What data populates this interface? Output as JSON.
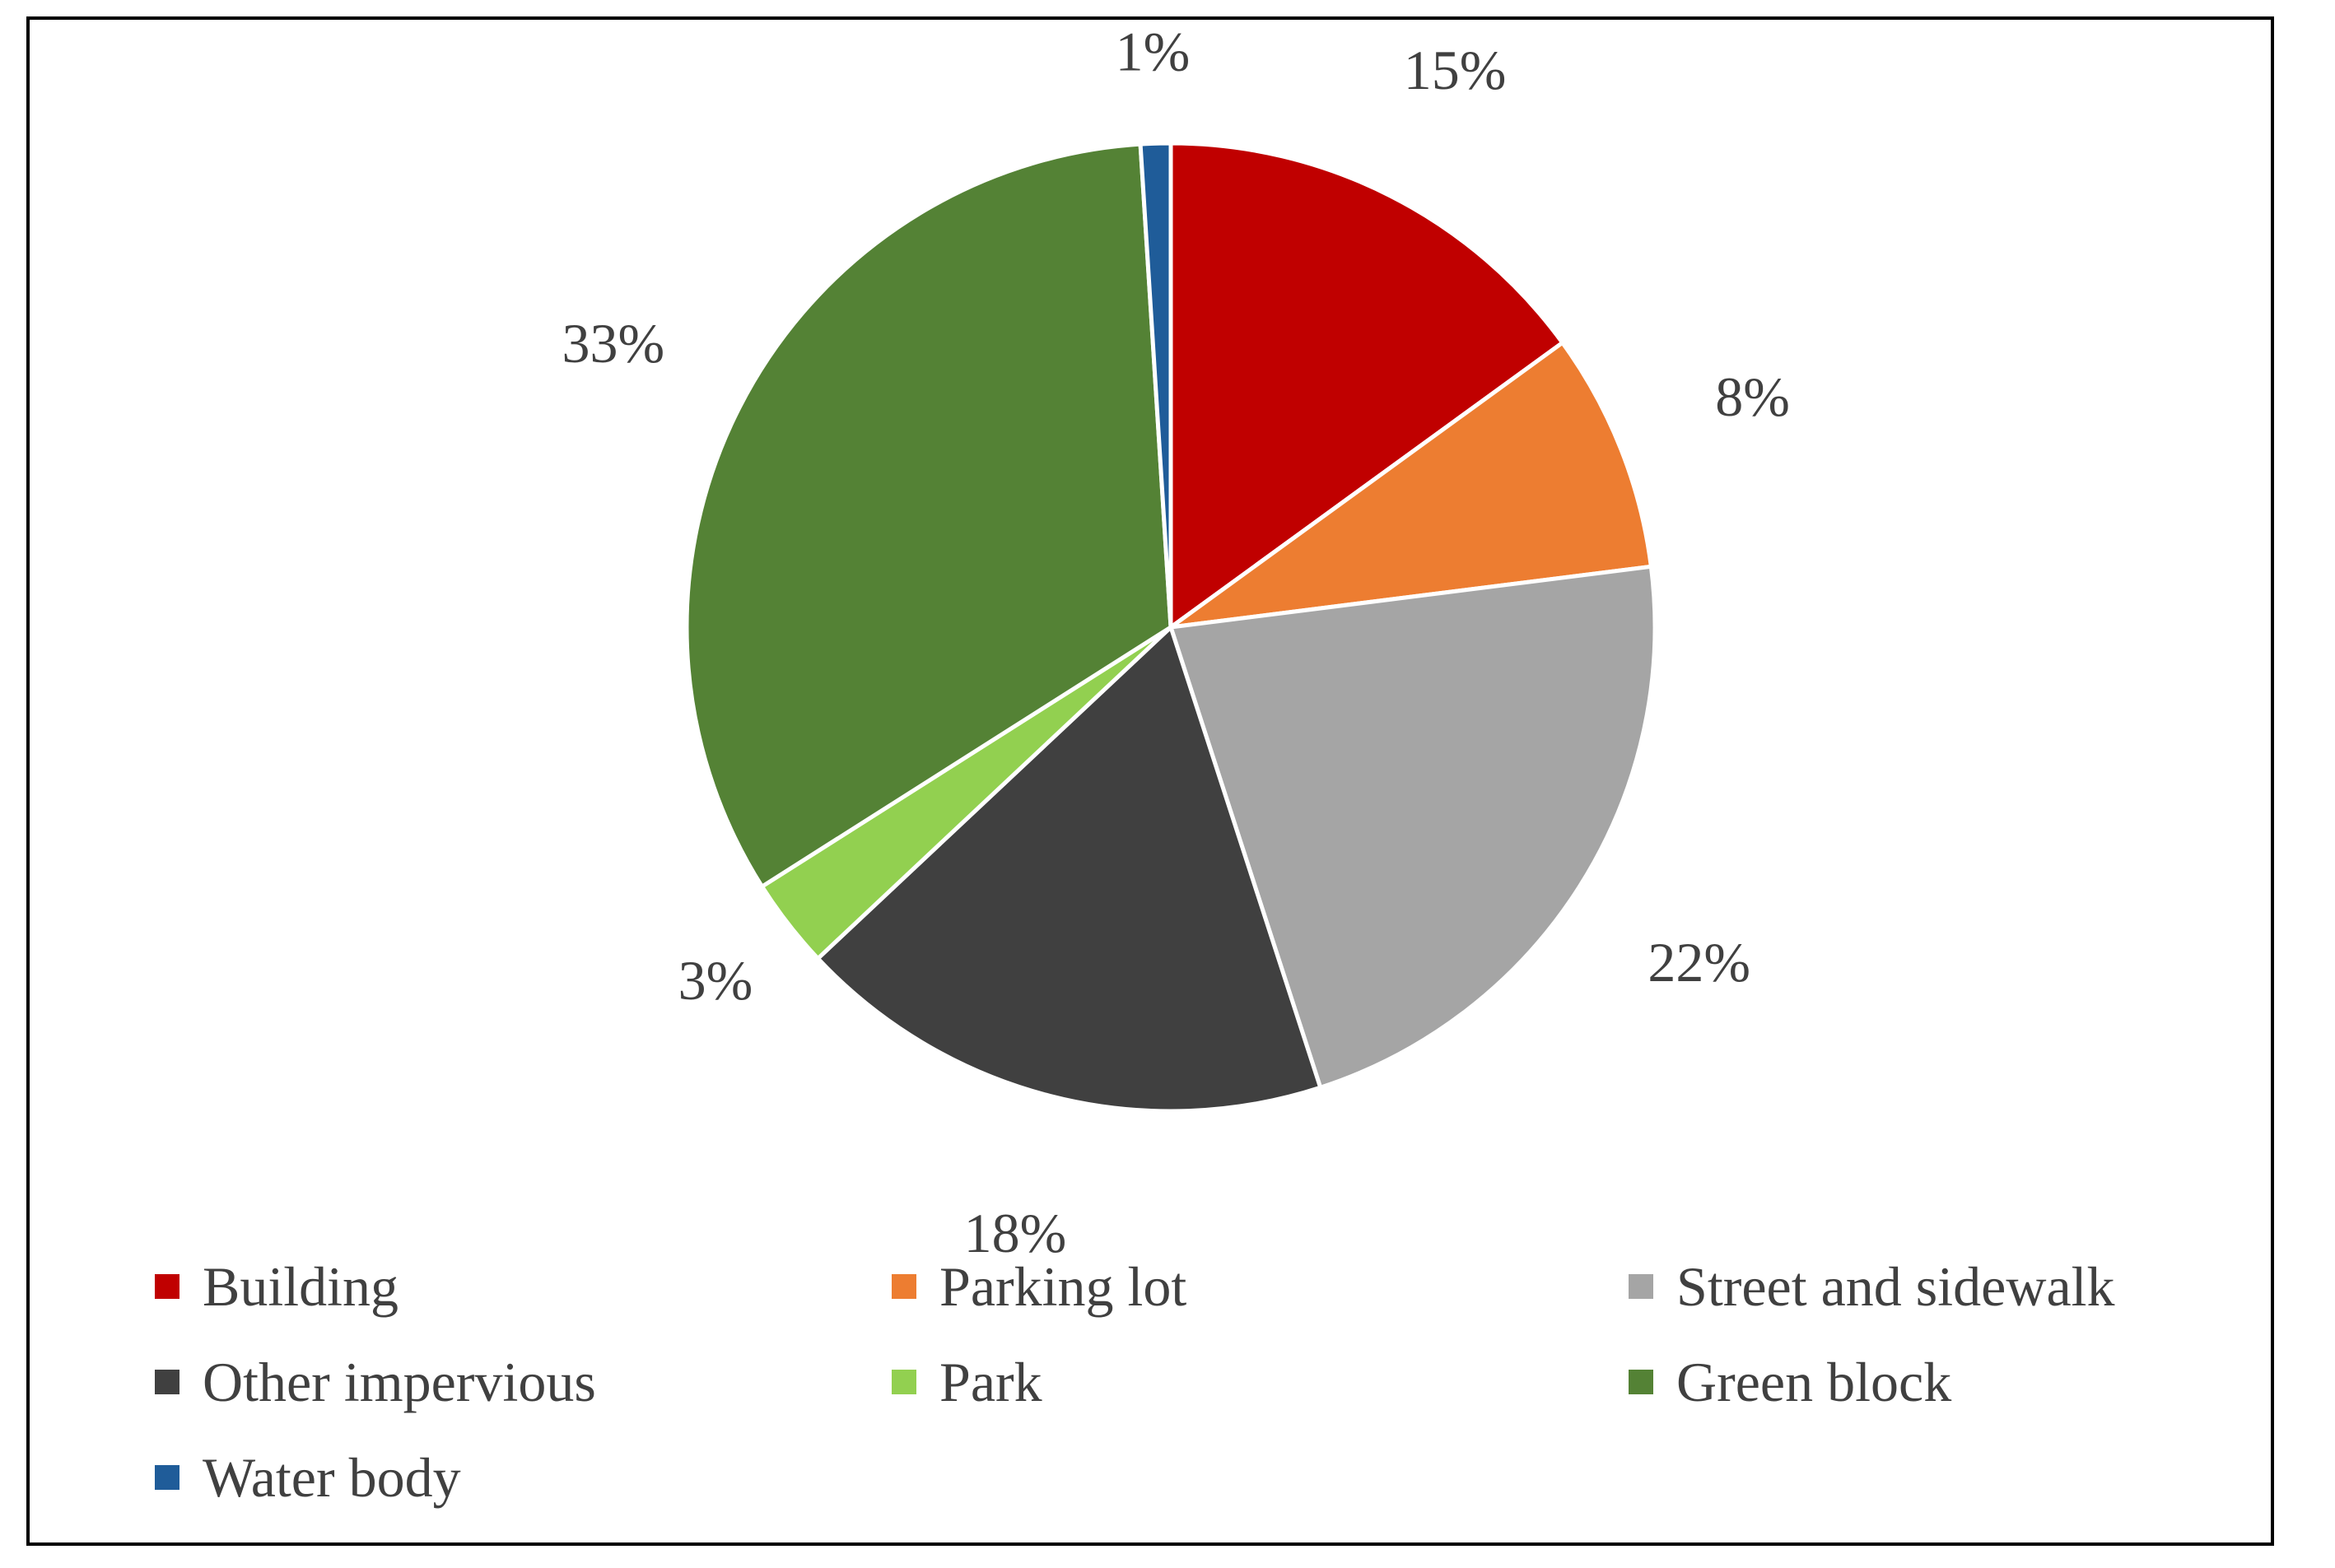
{
  "chart_data": {
    "type": "pie",
    "title": "",
    "start_angle_deg": 0,
    "direction": "clockwise",
    "slices": [
      {
        "name": "Building",
        "value": 15,
        "label": "15%",
        "color": "#C00000"
      },
      {
        "name": "Parking lot",
        "value": 8,
        "label": "8%",
        "color": "#ED7D31"
      },
      {
        "name": "Street and sidewalk",
        "value": 22,
        "label": "22%",
        "color": "#A5A5A5"
      },
      {
        "name": "Other impervious",
        "value": 18,
        "label": "18%",
        "color": "#404040"
      },
      {
        "name": "Park",
        "value": 3,
        "label": "3%",
        "color": "#92D050"
      },
      {
        "name": "Green block",
        "value": 33,
        "label": "33%",
        "color": "#548235"
      },
      {
        "name": "Water body",
        "value": 1,
        "label": "1%",
        "color": "#1F5C99"
      }
    ],
    "legend": {
      "placement": "bottom",
      "columns": 3
    }
  }
}
